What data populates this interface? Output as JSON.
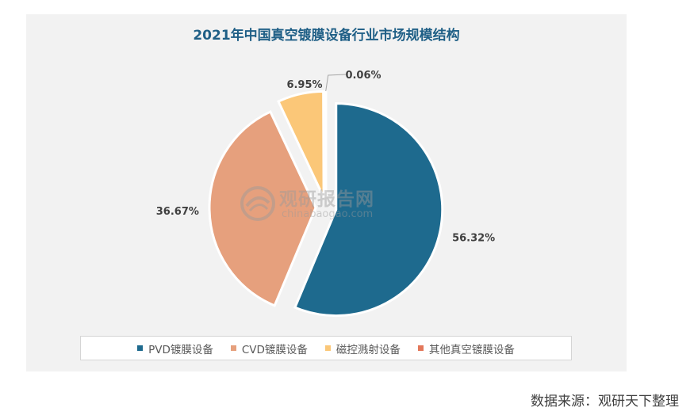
{
  "source_text": "数据来源：观研天下整理",
  "watermark": {
    "cn": "观研报告网",
    "en": "chinabaogao.com"
  },
  "chart_data": {
    "type": "pie",
    "title": "2021年中国真空镀膜设备行业市场规模结构",
    "categories": [
      "PVD镀膜设备",
      "CVD镀膜设备",
      "磁控溅射设备",
      "其他真空镀膜设备"
    ],
    "values": [
      56.32,
      36.67,
      6.95,
      0.06
    ],
    "data_labels": [
      "56.32%",
      "36.67%",
      "6.95%",
      "0.06%"
    ],
    "colors": [
      "#1e6a8e",
      "#e6a07d",
      "#fbc778",
      "#e3775a"
    ],
    "legend_position": "bottom",
    "exploded": true
  }
}
